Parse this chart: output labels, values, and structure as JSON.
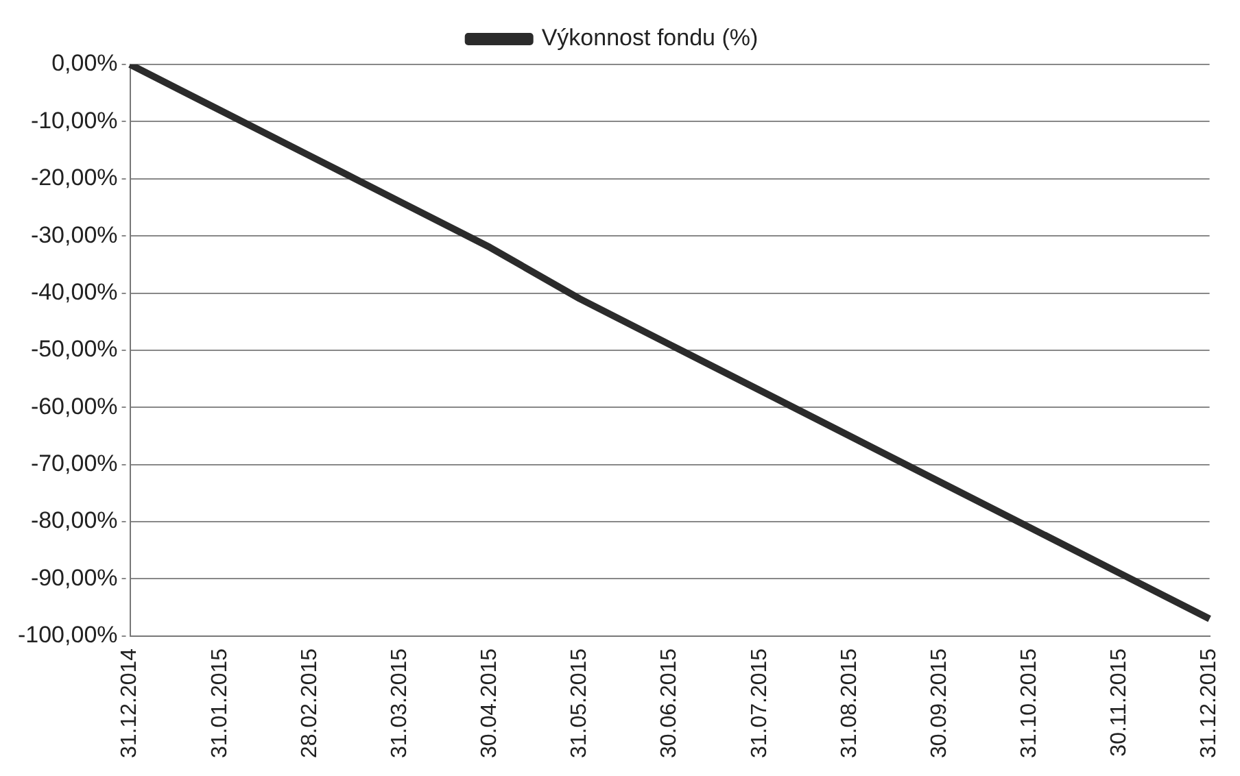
{
  "chart_data": {
    "type": "line",
    "categories": [
      "31.12.2014",
      "31.01.2015",
      "28.02.2015",
      "31.03.2015",
      "30.04.2015",
      "31.05.2015",
      "30.06.2015",
      "31.07.2015",
      "31.08.2015",
      "30.09.2015",
      "31.10.2015",
      "30.11.2015",
      "31.12.2015"
    ],
    "series": [
      {
        "name": "Výkonnost fondu (%)",
        "color": "#2b2b2b",
        "values": [
          0,
          -8,
          -16,
          -24,
          -32,
          -41,
          -49,
          -57,
          -65,
          -73,
          -81,
          -89,
          -97
        ]
      }
    ],
    "ylim": [
      -100,
      0
    ],
    "yticks": [
      {
        "value": 0,
        "label": "0,00%"
      },
      {
        "value": -10,
        "label": "-10,00%"
      },
      {
        "value": -20,
        "label": "-20,00%"
      },
      {
        "value": -30,
        "label": "-30,00%"
      },
      {
        "value": -40,
        "label": "-40,00%"
      },
      {
        "value": -50,
        "label": "-50,00%"
      },
      {
        "value": -60,
        "label": "-60,00%"
      },
      {
        "value": -70,
        "label": "-70,00%"
      },
      {
        "value": -80,
        "label": "-80,00%"
      },
      {
        "value": -90,
        "label": "-90,00%"
      },
      {
        "value": -100,
        "label": "-100,00%"
      }
    ],
    "grid": "y",
    "legend": "top",
    "marker": "none",
    "line_style": "solid"
  }
}
